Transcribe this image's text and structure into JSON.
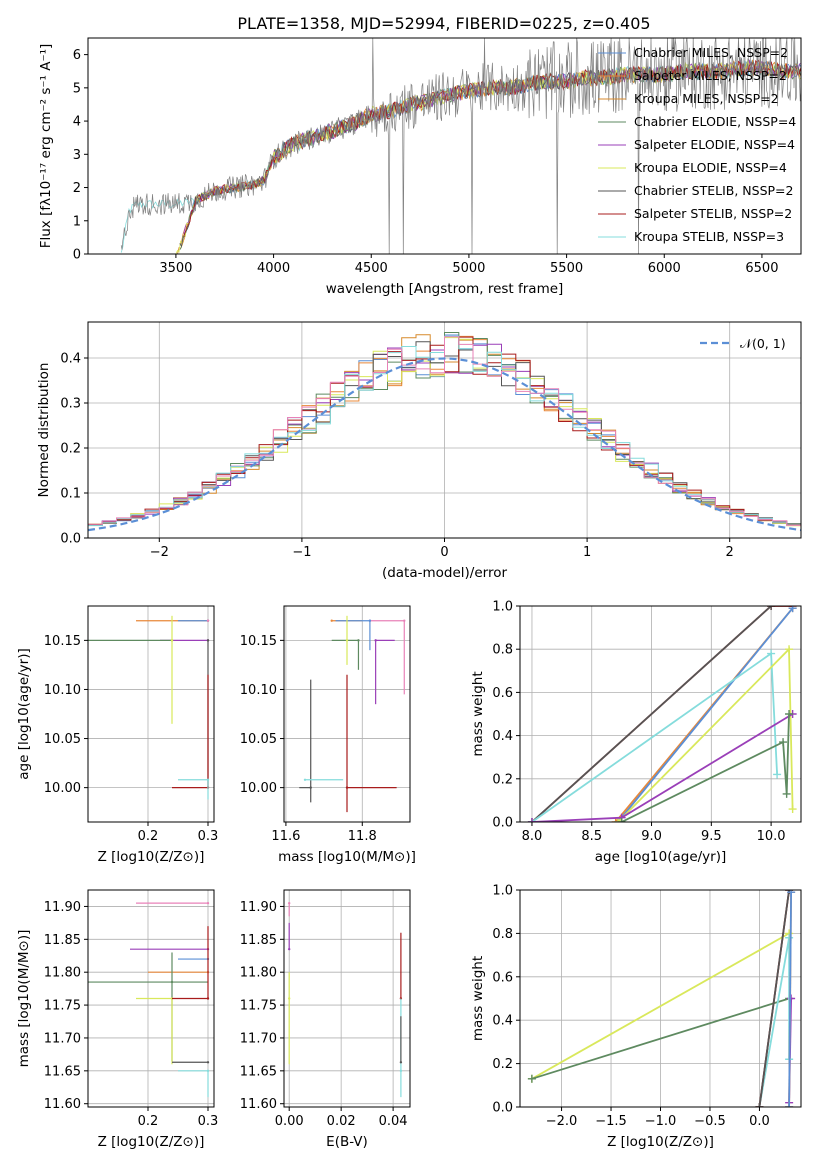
{
  "figure_title": "PLATE=1358, MJD=52994, FIBERID=0225, z=0.405",
  "colors": {
    "chabrier_miles": "#5b8fd6",
    "salpeter_miles": "#e8883a",
    "kroupa_miles": "#d78a2c",
    "chabrier_elodie": "#5e8a60",
    "salpeter_elodie": "#9a3fb8",
    "kroupa_elodie": "#d9e85b",
    "chabrier_stelib": "#555555",
    "salpeter_stelib": "#a81c1c",
    "kroupa_stelib": "#85dcdc",
    "pink": "#e882b8",
    "gauss": "#5b8fd6",
    "data_spectrum": "#808080"
  },
  "chart_data": [
    {
      "id": "spectrum",
      "type": "line",
      "title": "PLATE=1358, MJD=52994, FIBERID=0225, z=0.405",
      "xlabel": "wavelength [Angstrom, rest frame]",
      "ylabel": "Flux [fλ10⁻¹⁷ erg cm⁻² s⁻¹ A⁻¹]",
      "xlim": [
        3050,
        6700
      ],
      "ylim": [
        0,
        6.5
      ],
      "xticks": [
        3500,
        4000,
        4500,
        5000,
        5500,
        6000,
        6500
      ],
      "yticks": [
        0,
        1,
        2,
        3,
        4,
        5,
        6
      ],
      "grid": false,
      "legend_position": "top-right",
      "legend": [
        "Chabrier MILES, NSSP=2",
        "Salpeter MILES, NSSP=2",
        "Kroupa MILES, NSSP=2",
        "Chabrier ELODIE, NSSP=4",
        "Salpeter ELODIE, NSSP=4",
        "Kroupa ELODIE, NSSP=4",
        "Chabrier STELIB, NSSP=2",
        "Salpeter STELIB, NSSP=2",
        "Kroupa STELIB, NSSP=3"
      ],
      "continuum": {
        "x": [
          3220,
          3260,
          3300,
          3400,
          3500,
          3600,
          3700,
          3800,
          3900,
          3950,
          4000,
          4100,
          4200,
          4300,
          4400,
          4500,
          4600,
          4700,
          4800,
          4900,
          5000,
          5100,
          5200,
          5300,
          5400,
          5500,
          5600,
          5700,
          5800,
          5900,
          6000,
          6100,
          6200,
          6300,
          6400,
          6500,
          6600,
          6700
        ],
        "y": [
          0.0,
          1.3,
          1.5,
          1.5,
          1.5,
          1.6,
          1.9,
          2.0,
          2.1,
          2.2,
          2.9,
          3.3,
          3.5,
          3.7,
          3.9,
          4.2,
          4.3,
          4.5,
          4.6,
          4.8,
          4.9,
          5.0,
          5.0,
          5.1,
          5.2,
          5.2,
          5.3,
          5.3,
          5.4,
          5.4,
          5.4,
          5.5,
          5.5,
          5.5,
          5.6,
          5.6,
          5.5,
          5.5
        ]
      }
    },
    {
      "id": "residuals",
      "type": "histogram",
      "xlabel": "(data-model)/error",
      "ylabel": "Normed distribution",
      "xlim": [
        -2.5,
        2.5
      ],
      "ylim": [
        0,
        0.48
      ],
      "xticks": [
        -2,
        -1,
        0,
        1,
        2
      ],
      "yticks": [
        0.0,
        0.1,
        0.2,
        0.3,
        0.4
      ],
      "grid": true,
      "legend_position": "top-right",
      "legend": [
        "𝒩(0, 1)"
      ],
      "bin_width": 0.1
    },
    {
      "id": "age_vs_Z",
      "type": "errorbar",
      "xlabel": "Z [log10(Z/Z⊙)]",
      "ylabel": "age  [log10(age/yr)]",
      "xlim": [
        0.1,
        0.31
      ],
      "ylim": [
        9.965,
        10.185
      ],
      "xticks": [
        0.2,
        0.3
      ],
      "yticks": [
        10.0,
        10.05,
        10.1,
        10.15
      ],
      "grid": true,
      "points": [
        {
          "color": "salpeter_miles",
          "x": 0.3,
          "xerr": [
            0.12,
            0.0
          ],
          "y": 10.17,
          "yerr": [
            0.0,
            0.0
          ]
        },
        {
          "color": "chabrier_miles",
          "x": 0.3,
          "xerr": [
            0.05,
            0.0
          ],
          "y": 10.17,
          "yerr": [
            0.0,
            0.0
          ]
        },
        {
          "color": "salpeter_elodie",
          "x": 0.3,
          "xerr": [
            0.08,
            0.0
          ],
          "y": 10.15,
          "yerr": [
            0.0,
            0.0
          ]
        },
        {
          "color": "chabrier_elodie",
          "x": 0.24,
          "xerr": [
            0.14,
            0.0
          ],
          "y": 10.15,
          "yerr": [
            0.0,
            0.0
          ]
        },
        {
          "color": "kroupa_elodie",
          "x": 0.24,
          "xerr": [
            0.0,
            0.0
          ],
          "y": 10.15,
          "yerr": [
            0.085,
            0.025
          ]
        },
        {
          "color": "chabrier_stelib",
          "x": 0.3,
          "xerr": [
            0.0,
            0.0
          ],
          "y": 10.15,
          "yerr": [
            0.15,
            0.0
          ]
        },
        {
          "color": "salpeter_stelib",
          "x": 0.3,
          "xerr": [
            0.06,
            0.0
          ],
          "y": 10.0,
          "yerr": [
            0.0,
            0.115
          ]
        },
        {
          "color": "kroupa_stelib",
          "x": 0.3,
          "xerr": [
            0.05,
            0.0
          ],
          "y": 10.008,
          "yerr": [
            0.02,
            0.0
          ]
        },
        {
          "color": "pink",
          "x": 0.3,
          "xerr": [
            0.0,
            0.0
          ],
          "y": 10.17,
          "yerr": [
            0.0,
            0.0
          ]
        }
      ]
    },
    {
      "id": "age_vs_mass",
      "type": "errorbar",
      "xlabel": "mass [log10(M/M⊙)]",
      "ylabel": "",
      "xlim": [
        11.595,
        11.925
      ],
      "ylim": [
        9.965,
        10.185
      ],
      "xticks": [
        11.6,
        11.8
      ],
      "yticks": [
        10.0,
        10.05,
        10.1,
        10.15
      ],
      "grid": true,
      "points": [
        {
          "color": "pink",
          "x": 11.82,
          "xerr": [
            0.0,
            0.09
          ],
          "y": 10.17,
          "yerr": [
            0.0,
            0.0
          ]
        },
        {
          "color": "pink",
          "x": 11.91,
          "xerr": [
            0.0,
            0.0
          ],
          "y": 10.17,
          "yerr": [
            0.075,
            0.0
          ]
        },
        {
          "color": "salpeter_miles",
          "x": 11.72,
          "xerr": [
            0.0,
            0.08
          ],
          "y": 10.17,
          "yerr": [
            0.0,
            0.0
          ]
        },
        {
          "color": "chabrier_miles",
          "x": 11.82,
          "xerr": [
            0.09,
            0.0
          ],
          "y": 10.17,
          "yerr": [
            0.03,
            0.0
          ]
        },
        {
          "color": "salpeter_elodie",
          "x": 11.835,
          "xerr": [
            0.0,
            0.05
          ],
          "y": 10.15,
          "yerr": [
            0.065,
            0.0
          ]
        },
        {
          "color": "chabrier_elodie",
          "x": 11.79,
          "xerr": [
            0.07,
            0.0
          ],
          "y": 10.15,
          "yerr": [
            0.03,
            0.0
          ]
        },
        {
          "color": "kroupa_elodie",
          "x": 11.76,
          "xerr": [
            0.0,
            0.0
          ],
          "y": 10.15,
          "yerr": [
            0.025,
            0.025
          ]
        },
        {
          "color": "chabrier_stelib",
          "x": 11.665,
          "xerr": [
            0.03,
            0.0
          ],
          "y": 10.0,
          "yerr": [
            0.015,
            0.11
          ]
        },
        {
          "color": "salpeter_stelib",
          "x": 11.76,
          "xerr": [
            0.0,
            0.13
          ],
          "y": 10.0,
          "yerr": [
            0.025,
            0.115
          ]
        },
        {
          "color": "kroupa_stelib",
          "x": 11.65,
          "xerr": [
            0.0,
            0.1
          ],
          "y": 10.008,
          "yerr": [
            0.0,
            0.0
          ]
        }
      ]
    },
    {
      "id": "weight_vs_age",
      "type": "line",
      "xlabel": "age  [log10(age/yr)]",
      "ylabel": "mass weight",
      "xlim": [
        7.9,
        10.25
      ],
      "ylim": [
        0,
        1.0
      ],
      "xticks": [
        8.0,
        8.5,
        9.0,
        9.5,
        10.0
      ],
      "yticks": [
        0.0,
        0.2,
        0.4,
        0.6,
        0.8,
        1.0
      ],
      "grid": true,
      "series": [
        {
          "color": "salpeter_stelib",
          "x": [
            8.0,
            10.0,
            10.18
          ],
          "y": [
            0.0,
            1.0,
            1.0
          ]
        },
        {
          "color": "chabrier_stelib",
          "x": [
            8.0,
            10.0
          ],
          "y": [
            0.0,
            1.0
          ]
        },
        {
          "color": "salpeter_miles",
          "x": [
            8.7,
            10.18
          ],
          "y": [
            0.0,
            0.99
          ]
        },
        {
          "color": "chabrier_miles",
          "x": [
            8.72,
            10.18
          ],
          "y": [
            0.0,
            0.99
          ]
        },
        {
          "color": "kroupa_stelib",
          "x": [
            8.0,
            10.0,
            10.05
          ],
          "y": [
            0.0,
            0.78,
            0.22
          ]
        },
        {
          "color": "kroupa_elodie",
          "x": [
            8.72,
            10.15,
            10.18
          ],
          "y": [
            0.0,
            0.8,
            0.06
          ]
        },
        {
          "color": "salpeter_elodie",
          "x": [
            8.0,
            8.75,
            10.18
          ],
          "y": [
            0.0,
            0.02,
            0.5
          ]
        },
        {
          "color": "chabrier_elodie",
          "x": [
            8.75,
            10.1,
            10.13,
            10.15
          ],
          "y": [
            0.0,
            0.37,
            0.13,
            0.5
          ]
        }
      ]
    },
    {
      "id": "mass_vs_Z",
      "type": "errorbar",
      "xlabel": "Z [log10(Z/Z⊙)]",
      "ylabel": "mass [log10(M/M⊙)]",
      "xlim": [
        0.1,
        0.31
      ],
      "ylim": [
        11.595,
        11.925
      ],
      "xticks": [
        0.2,
        0.3
      ],
      "yticks": [
        11.6,
        11.65,
        11.7,
        11.75,
        11.8,
        11.85,
        11.9
      ],
      "grid": true,
      "points": [
        {
          "color": "pink",
          "x": 0.3,
          "xerr": [
            0.12,
            0.0
          ],
          "y": 11.905,
          "yerr": [
            0.0,
            0.0
          ]
        },
        {
          "color": "salpeter_elodie",
          "x": 0.3,
          "xerr": [
            0.13,
            0.0
          ],
          "y": 11.835,
          "yerr": [
            0.0,
            0.0
          ]
        },
        {
          "color": "chabrier_miles",
          "x": 0.3,
          "xerr": [
            0.05,
            0.0
          ],
          "y": 11.82,
          "yerr": [
            0.0,
            0.0
          ]
        },
        {
          "color": "salpeter_miles",
          "x": 0.3,
          "xerr": [
            0.1,
            0.0
          ],
          "y": 11.8,
          "yerr": [
            0.0,
            0.0
          ]
        },
        {
          "color": "chabrier_elodie",
          "x": 0.24,
          "xerr": [
            0.15,
            0.06
          ],
          "y": 11.785,
          "yerr": [
            0.12,
            0.045
          ]
        },
        {
          "color": "kroupa_elodie",
          "x": 0.24,
          "xerr": [
            0.06,
            0.0
          ],
          "y": 11.76,
          "yerr": [
            0.1,
            0.0
          ]
        },
        {
          "color": "salpeter_stelib",
          "x": 0.3,
          "xerr": [
            0.06,
            0.0
          ],
          "y": 11.76,
          "yerr": [
            0.0,
            0.11
          ]
        },
        {
          "color": "chabrier_stelib",
          "x": 0.3,
          "xerr": [
            0.06,
            0.0
          ],
          "y": 11.663,
          "yerr": [
            0.0,
            0.0
          ]
        },
        {
          "color": "kroupa_stelib",
          "x": 0.3,
          "xerr": [
            0.05,
            0.0
          ],
          "y": 11.65,
          "yerr": [
            0.04,
            0.0
          ]
        }
      ]
    },
    {
      "id": "mass_vs_ebv",
      "type": "errorbar",
      "xlabel": "E(B-V)",
      "ylabel": "",
      "xlim": [
        -0.002,
        0.0465
      ],
      "ylim": [
        11.595,
        11.925
      ],
      "xticks": [
        0.0,
        0.02,
        0.04
      ],
      "yticks": [
        11.6,
        11.65,
        11.7,
        11.75,
        11.8,
        11.85,
        11.9
      ],
      "grid": true,
      "points": [
        {
          "color": "salpeter_elodie",
          "x": 0.0,
          "xerr": [
            0.0,
            0.0
          ],
          "y": 11.835,
          "yerr": [
            0.0,
            0.04
          ]
        },
        {
          "color": "pink",
          "x": 0.0,
          "xerr": [
            0.0,
            0.0
          ],
          "y": 11.905,
          "yerr": [
            0.02,
            0.0
          ]
        },
        {
          "color": "kroupa_elodie",
          "x": 0.0,
          "xerr": [
            0.0,
            0.0
          ],
          "y": 11.76,
          "yerr": [
            0.1,
            0.04
          ]
        },
        {
          "color": "salpeter_stelib",
          "x": 0.043,
          "xerr": [
            0.0,
            0.0
          ],
          "y": 11.76,
          "yerr": [
            0.0,
            0.1
          ]
        },
        {
          "color": "kroupa_stelib",
          "x": 0.043,
          "xerr": [
            0.0,
            0.0
          ],
          "y": 11.65,
          "yerr": [
            0.04,
            0.11
          ]
        },
        {
          "color": "chabrier_stelib",
          "x": 0.043,
          "xerr": [
            0.0,
            0.0
          ],
          "y": 11.663,
          "yerr": [
            0.0,
            0.07
          ]
        }
      ]
    },
    {
      "id": "weight_vs_Z",
      "type": "line",
      "xlabel": "Z [log10(Z/Z⊙)]",
      "ylabel": "mass weight",
      "xlim": [
        -2.42,
        0.42
      ],
      "ylim": [
        0,
        1.0
      ],
      "xticks": [
        -2.0,
        -1.5,
        -1.0,
        -0.5,
        0.0
      ],
      "yticks": [
        0.0,
        0.2,
        0.4,
        0.6,
        0.8,
        1.0
      ],
      "grid": true,
      "series": [
        {
          "color": "kroupa_elodie",
          "x": [
            -2.3,
            0.3
          ],
          "y": [
            0.13,
            0.8
          ]
        },
        {
          "color": "chabrier_elodie",
          "x": [
            -2.3,
            0.3
          ],
          "y": [
            0.13,
            0.5
          ]
        },
        {
          "color": "salpeter_elodie",
          "x": [
            0.3,
            0.32
          ],
          "y": [
            0.02,
            0.5
          ]
        },
        {
          "color": "kroupa_stelib",
          "x": [
            0.0,
            0.3,
            0.3
          ],
          "y": [
            0.0,
            0.78,
            0.22
          ]
        },
        {
          "color": "salpeter_stelib",
          "x": [
            0.0,
            0.3
          ],
          "y": [
            0.0,
            1.0
          ]
        },
        {
          "color": "chabrier_stelib",
          "x": [
            0.0,
            0.3
          ],
          "y": [
            0.0,
            1.0
          ]
        },
        {
          "color": "salpeter_miles",
          "x": [
            0.3,
            0.32
          ],
          "y": [
            0.0,
            0.99
          ]
        },
        {
          "color": "chabrier_miles",
          "x": [
            0.3,
            0.32
          ],
          "y": [
            0.0,
            0.99
          ]
        }
      ]
    }
  ]
}
